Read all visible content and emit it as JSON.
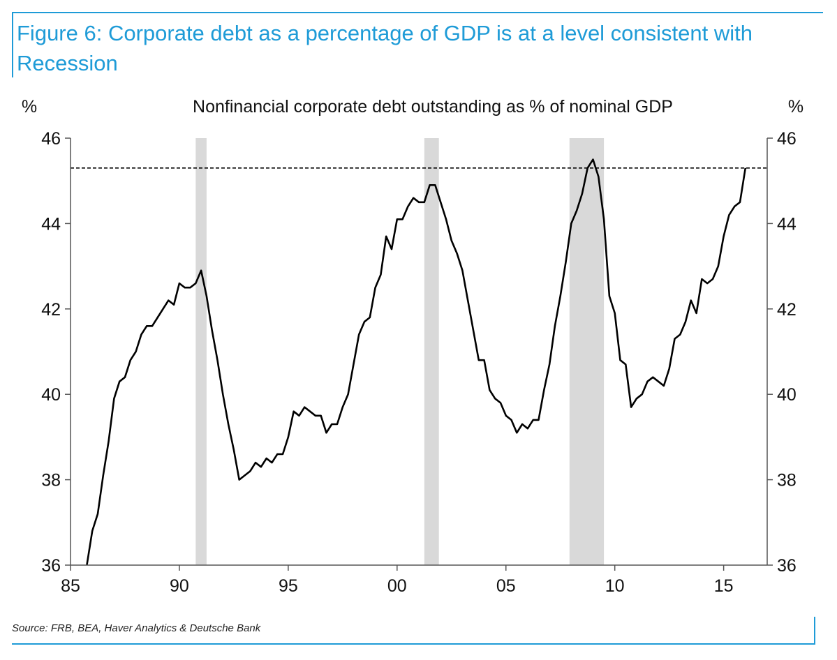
{
  "figure": {
    "title": "Figure 6: Corporate debt as a percentage of GDP is at a level consistent with Recession",
    "source": "Source: FRB, BEA, Haver Analytics & Deutsche Bank"
  },
  "chart_data": {
    "type": "line",
    "title": "Nonfinancial corporate debt outstanding as % of nominal GDP",
    "ylabel_left": "%",
    "ylabel_right": "%",
    "xlim": [
      1985,
      2017
    ],
    "ylim": [
      36,
      46
    ],
    "yticks": [
      36,
      38,
      40,
      42,
      44,
      46
    ],
    "xticks": [
      1985,
      1990,
      1995,
      2000,
      2005,
      2010,
      2015
    ],
    "xtick_labels": [
      "85",
      "90",
      "95",
      "00",
      "05",
      "10",
      "15"
    ],
    "grid": false,
    "recessions": [
      [
        1990.75,
        1991.25
      ],
      [
        2001.25,
        2001.92
      ],
      [
        2007.92,
        2009.5
      ]
    ],
    "reference_line": 45.3,
    "colors": {
      "line": "#000000",
      "recession": "#d9d9d9",
      "axis": "#555555",
      "accent": "#1e9bd7"
    },
    "series": [
      {
        "x": [
          1985.75,
          1986.0,
          1986.25,
          1986.5,
          1986.75,
          1987.0,
          1987.25,
          1987.5,
          1987.75,
          1988.0,
          1988.25,
          1988.5,
          1988.75,
          1989.0,
          1989.25,
          1989.5,
          1989.75,
          1990.0,
          1990.25,
          1990.5,
          1990.75,
          1991.0,
          1991.25,
          1991.5,
          1991.75,
          1992.0,
          1992.25,
          1992.5,
          1992.75,
          1993.0,
          1993.25,
          1993.5,
          1993.75,
          1994.0,
          1994.25,
          1994.5,
          1994.75,
          1995.0,
          1995.25,
          1995.5,
          1995.75,
          1996.0,
          1996.25,
          1996.5,
          1996.75,
          1997.0,
          1997.25,
          1997.5,
          1997.75,
          1998.0,
          1998.25,
          1998.5,
          1998.75,
          1999.0,
          1999.25,
          1999.5,
          1999.75,
          2000.0,
          2000.25,
          2000.5,
          2000.75,
          2001.0,
          2001.25,
          2001.5,
          2001.75,
          2002.0,
          2002.25,
          2002.5,
          2002.75,
          2003.0,
          2003.25,
          2003.5,
          2003.75,
          2004.0,
          2004.25,
          2004.5,
          2004.75,
          2005.0,
          2005.25,
          2005.5,
          2005.75,
          2006.0,
          2006.25,
          2006.5,
          2006.75,
          2007.0,
          2007.25,
          2007.5,
          2007.75,
          2008.0,
          2008.25,
          2008.5,
          2008.75,
          2009.0,
          2009.25,
          2009.5,
          2009.75,
          2010.0,
          2010.25,
          2010.5,
          2010.75,
          2011.0,
          2011.25,
          2011.5,
          2011.75,
          2012.0,
          2012.25,
          2012.5,
          2012.75,
          2013.0,
          2013.25,
          2013.5,
          2013.75,
          2014.0,
          2014.25,
          2014.5,
          2014.75,
          2015.0,
          2015.25,
          2015.5,
          2015.75,
          2016.0
        ],
        "values": [
          36.0,
          36.8,
          37.2,
          38.1,
          38.9,
          39.9,
          40.3,
          40.4,
          40.8,
          41.0,
          41.4,
          41.6,
          41.6,
          41.8,
          42.0,
          42.2,
          42.1,
          42.6,
          42.5,
          42.5,
          42.6,
          42.9,
          42.3,
          41.5,
          40.8,
          40.0,
          39.3,
          38.7,
          38.0,
          38.1,
          38.2,
          38.4,
          38.3,
          38.5,
          38.4,
          38.6,
          38.6,
          39.0,
          39.6,
          39.5,
          39.7,
          39.6,
          39.5,
          39.5,
          39.1,
          39.3,
          39.3,
          39.7,
          40.0,
          40.7,
          41.4,
          41.7,
          41.8,
          42.5,
          42.8,
          43.7,
          43.4,
          44.1,
          44.1,
          44.4,
          44.6,
          44.5,
          44.5,
          44.9,
          44.9,
          44.5,
          44.1,
          43.6,
          43.3,
          42.9,
          42.2,
          41.5,
          40.8,
          40.8,
          40.1,
          39.9,
          39.8,
          39.5,
          39.4,
          39.1,
          39.3,
          39.2,
          39.4,
          39.4,
          40.1,
          40.7,
          41.6,
          42.3,
          43.1,
          44.0,
          44.3,
          44.7,
          45.3,
          45.5,
          45.1,
          44.1,
          42.3,
          41.9,
          40.8,
          40.7,
          39.7,
          39.9,
          40.0,
          40.3,
          40.4,
          40.3,
          40.2,
          40.6,
          41.3,
          41.4,
          41.7,
          42.2,
          41.9,
          42.7,
          42.6,
          42.7,
          43.0,
          43.7,
          44.2,
          44.4,
          44.5,
          45.3
        ]
      }
    ]
  }
}
